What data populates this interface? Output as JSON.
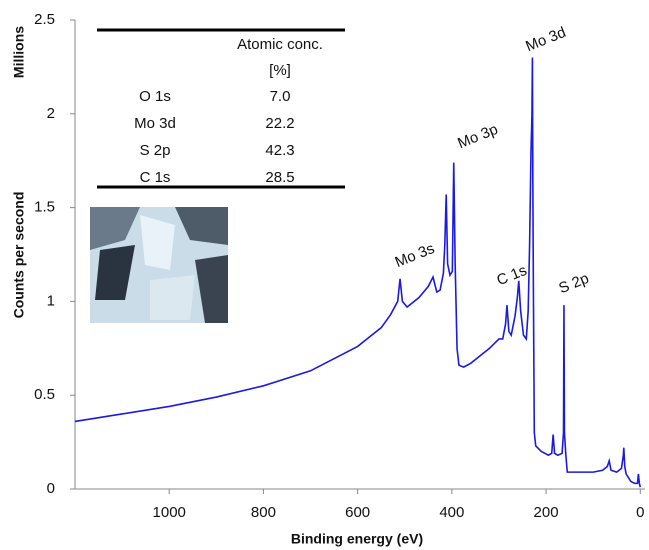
{
  "chart_data": {
    "type": "line",
    "y_unit_label": "Millions",
    "ylabel": "Counts per second",
    "xlabel": "Binding energy (eV)",
    "xlim": [
      1200,
      -10
    ],
    "xticks": [
      1000,
      800,
      600,
      400,
      200,
      0
    ],
    "ylim": [
      0,
      2.5
    ],
    "yticks": [
      0,
      0.5,
      1,
      1.5,
      2,
      2.5
    ],
    "series": [
      {
        "color": "#1a1ae0",
        "x": [
          1200,
          1100,
          1000,
          900,
          800,
          700,
          600,
          570,
          550,
          530,
          515,
          510,
          505,
          495,
          470,
          450,
          440,
          432,
          425,
          418,
          415,
          412,
          409,
          404,
          399,
          396,
          393,
          389,
          385,
          375,
          360,
          340,
          320,
          300,
          292,
          286,
          283,
          279,
          274,
          266,
          261,
          258,
          254,
          248,
          242,
          238,
          235,
          232,
          230,
          229,
          228,
          227,
          225,
          222,
          210,
          195,
          188,
          185,
          182,
          175,
          166,
          163,
          162,
          161,
          158,
          155,
          140,
          120,
          100,
          80,
          70,
          66,
          62,
          50,
          40,
          36,
          35,
          33,
          30,
          20,
          12,
          6,
          4,
          2,
          0
        ],
        "values": [
          0.36,
          0.4,
          0.44,
          0.49,
          0.55,
          0.63,
          0.76,
          0.82,
          0.86,
          0.93,
          1.0,
          1.12,
          1.0,
          0.97,
          1.02,
          1.08,
          1.13,
          1.05,
          1.06,
          1.15,
          1.3,
          1.57,
          1.2,
          1.14,
          1.16,
          1.74,
          1.2,
          0.75,
          0.66,
          0.65,
          0.67,
          0.71,
          0.75,
          0.8,
          0.8,
          0.88,
          0.98,
          0.84,
          0.82,
          0.92,
          1.02,
          1.11,
          0.95,
          0.82,
          0.8,
          0.95,
          1.3,
          1.8,
          1.99,
          2.3,
          1.6,
          1.1,
          0.3,
          0.23,
          0.2,
          0.18,
          0.19,
          0.29,
          0.19,
          0.18,
          0.19,
          0.3,
          0.98,
          0.3,
          0.18,
          0.09,
          0.09,
          0.09,
          0.09,
          0.1,
          0.12,
          0.15,
          0.1,
          0.09,
          0.11,
          0.18,
          0.22,
          0.12,
          0.08,
          0.04,
          0.03,
          0.03,
          0.08,
          0.03,
          0.01
        ]
      }
    ],
    "annotations": [
      "Mo 3s",
      "Mo 3p",
      "C 1s",
      "Mo 3d",
      "S 2p"
    ],
    "table": {
      "header": [
        "Atomic conc.",
        "[%]"
      ],
      "rows": [
        [
          "O 1s",
          "7.0"
        ],
        [
          "Mo 3d",
          "22.2"
        ],
        [
          "S 2p",
          "42.3"
        ],
        [
          "C 1s",
          "28.5"
        ]
      ]
    }
  }
}
